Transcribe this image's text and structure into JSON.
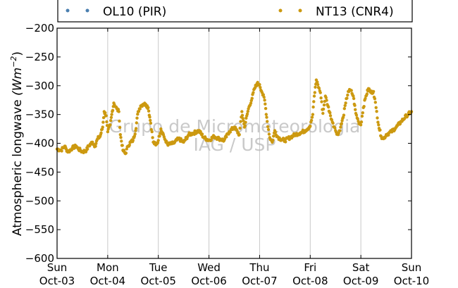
{
  "chart_data": {
    "type": "scatter",
    "ylabel": "Atmospheric longwave (Wm⁻²)",
    "ylabel_prefix": "Atmospheric longwave ",
    "ylabel_unit": "(Wm",
    "ylabel_exp": "−2",
    "ylabel_close": ")",
    "ylim": [
      -600,
      -200
    ],
    "yticks": [
      -600,
      -550,
      -500,
      -450,
      -400,
      -350,
      -300,
      -250,
      -200
    ],
    "ytick_labels": [
      "−600",
      "−550",
      "−500",
      "−450",
      "−400",
      "−350",
      "−300",
      "−250",
      "−200"
    ],
    "xlim": [
      0,
      7
    ],
    "x_unit": "days since Sun Oct-03 00:00",
    "xticks": [
      {
        "day": "Sun",
        "date": "Oct-03"
      },
      {
        "day": "Mon",
        "date": "Oct-04"
      },
      {
        "day": "Tue",
        "date": "Oct-05"
      },
      {
        "day": "Wed",
        "date": "Oct-06"
      },
      {
        "day": "Thu",
        "date": "Oct-07"
      },
      {
        "day": "Fri",
        "date": "Oct-08"
      },
      {
        "day": "Sat",
        "date": "Oct-09"
      },
      {
        "day": "Sun",
        "date": "Oct-10"
      }
    ],
    "grid": "vertical",
    "legend_position": "top",
    "watermark": [
      "Grupo de Micrometeorologia",
      "IAG / USP"
    ],
    "series": [
      {
        "name": "OL10 (PIR)",
        "color": "#4a7fb0",
        "x": [],
        "y": []
      },
      {
        "name": "NT13 (CNR4)",
        "color": "#cc9910",
        "x": [
          0.0,
          0.08,
          0.15,
          0.18,
          0.22,
          0.3,
          0.38,
          0.42,
          0.46,
          0.5,
          0.58,
          0.62,
          0.7,
          0.75,
          0.8,
          0.85,
          0.9,
          0.93,
          0.97,
          1.0,
          1.05,
          1.08,
          1.12,
          1.18,
          1.22,
          1.25,
          1.3,
          1.35,
          1.4,
          1.45,
          1.5,
          1.55,
          1.6,
          1.65,
          1.7,
          1.75,
          1.8,
          1.85,
          1.9,
          1.95,
          2.0,
          2.05,
          2.1,
          2.15,
          2.2,
          2.3,
          2.4,
          2.5,
          2.6,
          2.7,
          2.8,
          2.9,
          3.0,
          3.1,
          3.2,
          3.3,
          3.4,
          3.5,
          3.6,
          3.65,
          3.7,
          3.78,
          3.85,
          3.9,
          3.95,
          4.0,
          4.05,
          4.1,
          4.15,
          4.2,
          4.25,
          4.3,
          4.35,
          4.4,
          4.5,
          4.6,
          4.7,
          4.8,
          4.9,
          5.0,
          5.05,
          5.08,
          5.12,
          5.15,
          5.2,
          5.25,
          5.3,
          5.35,
          5.4,
          5.45,
          5.5,
          5.55,
          5.6,
          5.65,
          5.7,
          5.75,
          5.8,
          5.85,
          5.9,
          5.95,
          6.0,
          6.05,
          6.1,
          6.15,
          6.2,
          6.25,
          6.3,
          6.35,
          6.4,
          6.45,
          6.5,
          6.6,
          6.7,
          6.8,
          6.9,
          7.0
        ],
        "y": [
          -410,
          -412,
          -405,
          -410,
          -415,
          -408,
          -405,
          -410,
          -412,
          -415,
          -412,
          -405,
          -398,
          -405,
          -392,
          -388,
          -372,
          -345,
          -352,
          -380,
          -368,
          -350,
          -330,
          -340,
          -345,
          -385,
          -412,
          -418,
          -405,
          -398,
          -395,
          -378,
          -345,
          -335,
          -332,
          -332,
          -338,
          -365,
          -398,
          -403,
          -395,
          -375,
          -385,
          -398,
          -402,
          -400,
          -392,
          -398,
          -385,
          -382,
          -378,
          -390,
          -395,
          -388,
          -392,
          -395,
          -380,
          -372,
          -385,
          -345,
          -372,
          -340,
          -322,
          -305,
          -296,
          -298,
          -312,
          -325,
          -362,
          -390,
          -398,
          -378,
          -388,
          -392,
          -395,
          -390,
          -385,
          -382,
          -378,
          -370,
          -350,
          -318,
          -290,
          -298,
          -312,
          -348,
          -318,
          -335,
          -352,
          -365,
          -378,
          -385,
          -372,
          -355,
          -330,
          -310,
          -308,
          -318,
          -348,
          -362,
          -368,
          -338,
          -318,
          -305,
          -312,
          -310,
          -338,
          -368,
          -388,
          -392,
          -385,
          -380,
          -372,
          -362,
          -352,
          -345
        ]
      }
    ]
  }
}
